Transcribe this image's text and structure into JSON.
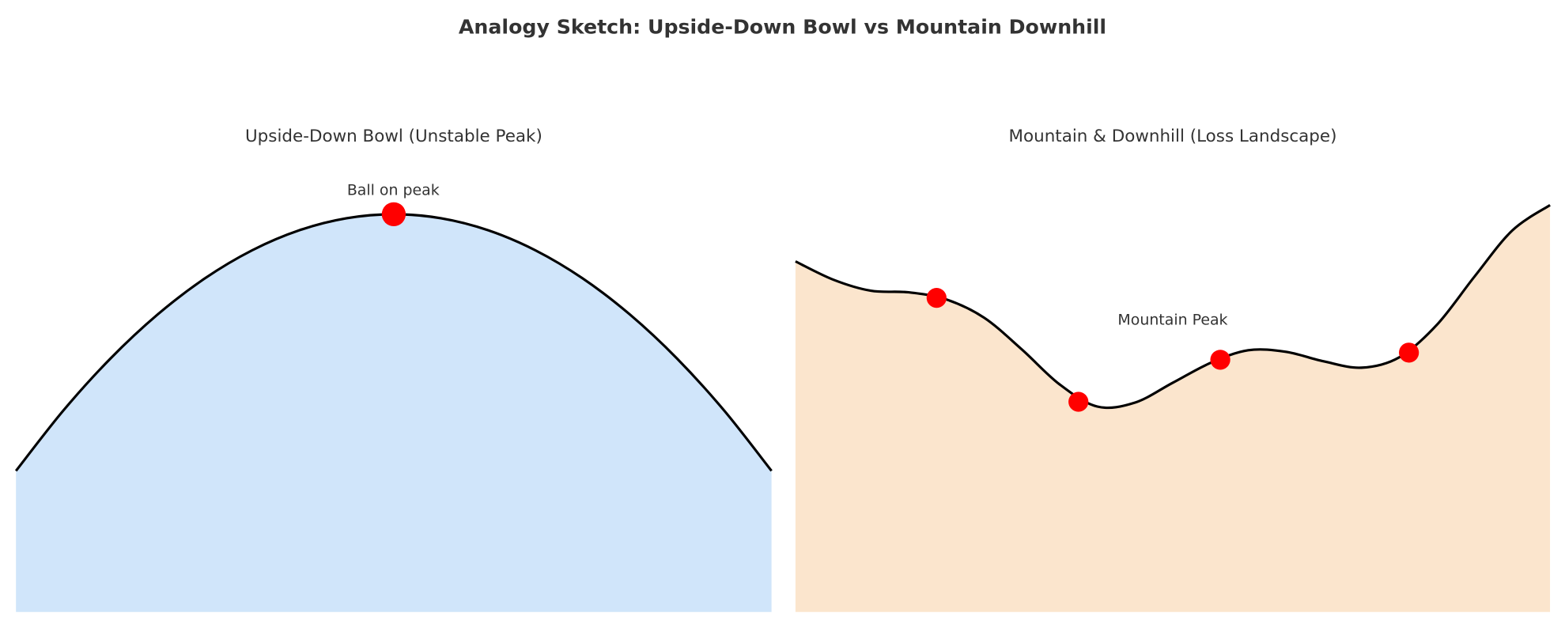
{
  "title": "Analogy Sketch: Upside-Down Bowl vs Mountain Downhill",
  "chart_data": [
    {
      "type": "area",
      "title": "Upside-Down Bowl (Unstable Peak)",
      "x": [
        -2,
        -1.75,
        -1.5,
        -1.25,
        -1,
        -0.75,
        -0.5,
        -0.25,
        0,
        0.25,
        0.5,
        0.75,
        1,
        1.25,
        1.5,
        1.75,
        2
      ],
      "values": [
        -4,
        -3.0625,
        -2.25,
        -1.5625,
        -1,
        -0.5625,
        -0.25,
        -0.0625,
        0,
        -0.0625,
        -0.25,
        -0.5625,
        -1,
        -1.5625,
        -2.25,
        -3.0625,
        -4
      ],
      "fill_color": "#d0e5fa",
      "line_color": "#000000",
      "markers": {
        "x": [
          0
        ],
        "values": [
          0
        ],
        "color": "#ff0000"
      },
      "annotation": "Ball on peak",
      "xlim": [
        -2,
        2
      ],
      "ylim": [
        -6.2,
        0.6
      ]
    },
    {
      "type": "area",
      "title": "Mountain & Downhill (Loss Landscape)",
      "x": [
        0,
        0.5,
        1,
        1.5,
        2,
        2.5,
        3,
        3.5,
        4,
        4.5,
        5,
        5.5,
        6,
        6.5,
        7,
        7.5,
        8,
        8.5,
        9,
        9.5,
        10
      ],
      "values": [
        4.42,
        4.19,
        4.05,
        4.03,
        3.94,
        3.71,
        3.31,
        2.87,
        2.59,
        2.64,
        2.89,
        3.14,
        3.3,
        3.28,
        3.16,
        3.08,
        3.21,
        3.62,
        4.23,
        4.81,
        5.13
      ],
      "fill_color": "#fbe5cd",
      "line_color": "#000000",
      "markers": {
        "x": [
          1.87,
          3.75,
          5.63,
          8.13
        ],
        "values": [
          3.96,
          2.65,
          3.18,
          3.27
        ],
        "color": "#ff0000"
      },
      "annotation": "Mountain Peak",
      "xlim": [
        0,
        10
      ],
      "ylim": [
        0,
        5.5
      ]
    }
  ]
}
